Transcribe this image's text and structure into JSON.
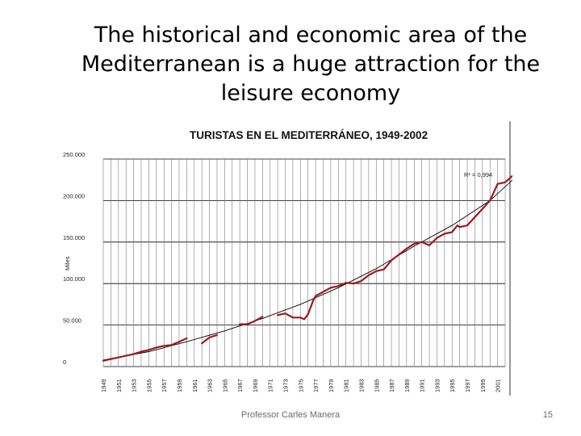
{
  "slide": {
    "title": "The historical and economic area of the\nMediterranean is a huge attraction for the\nleisure economy",
    "footer": "Professor Carles Manera",
    "page_number": "15"
  },
  "chart_data": {
    "type": "line",
    "title": "TURISTAS EN EL MEDITERRÁNEO, 1949-2002",
    "xlabel": "",
    "ylabel": "Miles",
    "ylim": [
      0,
      250000
    ],
    "xlim": [
      1949,
      2002
    ],
    "y_ticks": [
      "0",
      "50.000",
      "100.000",
      "150.000",
      "200.000",
      "250.000"
    ],
    "y_tick_values": [
      0,
      50000,
      100000,
      150000,
      200000,
      250000
    ],
    "x_ticks": [
      "1949",
      "1951",
      "1953",
      "1955",
      "1957",
      "1959",
      "1961",
      "1963",
      "1965",
      "1967",
      "1969",
      "1971",
      "1973",
      "1975",
      "1977",
      "1979",
      "1981",
      "1983",
      "1985",
      "1987",
      "1989",
      "1991",
      "1993",
      "1995",
      "1997",
      "1999",
      "2001"
    ],
    "grid": "vertical",
    "series_color": "#9b1c1c",
    "trend_color": "#000000",
    "trend_label": "R² = 0,994",
    "series": [
      {
        "name": "",
        "segments": [
          [
            [
              1949,
              7000
            ],
            [
              1950,
              9000
            ],
            [
              1951,
              11000
            ],
            [
              1952,
              13000
            ],
            [
              1953,
              15000
            ],
            [
              1954,
              18000
            ],
            [
              1955,
              20000
            ],
            [
              1956,
              23000
            ],
            [
              1957,
              25000
            ],
            [
              1958,
              26000
            ],
            [
              1959,
              30000
            ],
            [
              1960,
              34000
            ]
          ],
          [
            [
              1962,
              28000
            ],
            [
              1963,
              35000
            ],
            [
              1964,
              38000
            ]
          ],
          [
            [
              1967,
              51000
            ],
            [
              1968,
              51000
            ],
            [
              1969,
              55000
            ],
            [
              1970,
              60000
            ]
          ],
          [
            [
              1972,
              62000
            ],
            [
              1973,
              64000
            ],
            [
              1974,
              59000
            ],
            [
              1975,
              59000
            ],
            [
              1975.5,
              57000
            ],
            [
              1976,
              63000
            ],
            [
              1976.7,
              80000
            ],
            [
              1977,
              85000
            ],
            [
              1978,
              90000
            ],
            [
              1979,
              95000
            ],
            [
              1980,
              97000
            ],
            [
              1981,
              101000
            ],
            [
              1982,
              100000
            ],
            [
              1983,
              103000
            ],
            [
              1984,
              110000
            ],
            [
              1985,
              115000
            ],
            [
              1986,
              117000
            ],
            [
              1987,
              128000
            ],
            [
              1988,
              135000
            ],
            [
              1989,
              142000
            ],
            [
              1990,
              148000
            ],
            [
              1991,
              150000
            ],
            [
              1992,
              146000
            ],
            [
              1993,
              155000
            ],
            [
              1994,
              160000
            ],
            [
              1995,
              162000
            ],
            [
              1995.7,
              170000
            ],
            [
              1996,
              168000
            ],
            [
              1997,
              170000
            ],
            [
              1998,
              180000
            ],
            [
              1999,
              190000
            ],
            [
              2000,
              200000
            ],
            [
              2001,
              220000
            ],
            [
              2002,
              222000
            ],
            [
              2003,
              230000
            ]
          ]
        ]
      }
    ],
    "trend": [
      [
        1949,
        8000
      ],
      [
        1955,
        18000
      ],
      [
        1960,
        30000
      ],
      [
        1965,
        43000
      ],
      [
        1970,
        58000
      ],
      [
        1975,
        75000
      ],
      [
        1980,
        95000
      ],
      [
        1985,
        118000
      ],
      [
        1990,
        145000
      ],
      [
        1995,
        170000
      ],
      [
        2000,
        200000
      ],
      [
        2003,
        225000
      ]
    ]
  }
}
